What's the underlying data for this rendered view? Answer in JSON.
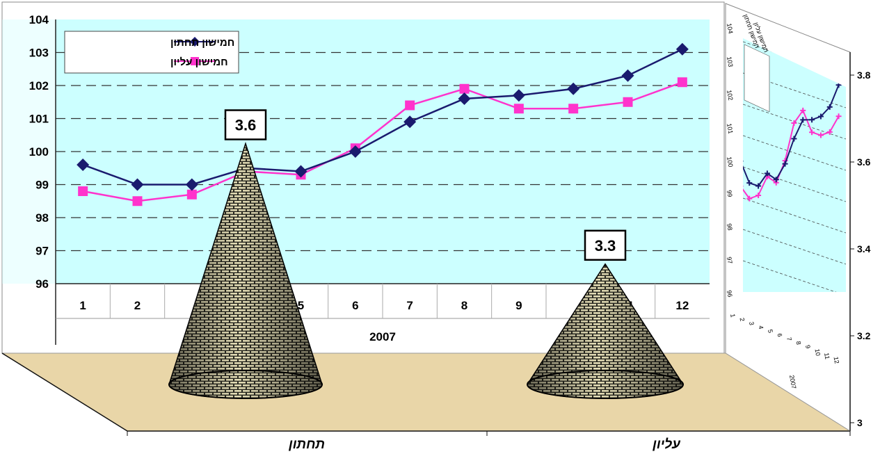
{
  "colors": {
    "plot_background": "#ccffff",
    "floor": "#e9d6a8",
    "series_lower": "#1a1a6e",
    "series_upper": "#ff33cc",
    "cone_mortar": "#f3ecc2",
    "cone_brick": "#2a2a22"
  },
  "chart_data": [
    {
      "type": "line",
      "role": "backdrop chart (front wall)",
      "x": [
        1,
        2,
        3,
        4,
        5,
        6,
        7,
        8,
        9,
        10,
        11,
        12
      ],
      "x_labels": [
        "1",
        "2",
        "",
        "",
        "5",
        "6",
        "7",
        "8",
        "9",
        "",
        "11",
        "12"
      ],
      "group_label": "2007",
      "ylim": [
        96,
        104
      ],
      "yticks": [
        "96",
        "97",
        "98",
        "99",
        "100",
        "101",
        "102",
        "103",
        "104"
      ],
      "grid": "dashed horizontal",
      "legend_position": "top-left",
      "series": [
        {
          "name": "חמישון תחתון",
          "marker": "diamond",
          "values": [
            99.6,
            99.0,
            99.0,
            99.5,
            99.4,
            100.0,
            100.9,
            101.6,
            101.7,
            101.9,
            102.3,
            103.1
          ]
        },
        {
          "name": "חמישון עליון",
          "marker": "square",
          "values": [
            98.8,
            98.5,
            98.7,
            99.4,
            99.3,
            100.1,
            101.4,
            101.9,
            101.3,
            101.3,
            101.5,
            102.1
          ]
        }
      ]
    },
    {
      "type": "line",
      "role": "small chart on right wall (repeat of backdrop, smaller)",
      "x_labels": [
        "1",
        "2",
        "3",
        "4",
        "5",
        "6",
        "7",
        "8",
        "9",
        "10",
        "11",
        "12"
      ],
      "group_label": "2007",
      "yticks": [
        "96",
        "97",
        "98",
        "99",
        "100",
        "101",
        "102",
        "103",
        "104"
      ],
      "series": [
        {
          "name": "חמישון תחתון",
          "values": [
            99.6,
            99.0,
            99.0,
            99.5,
            99.4,
            100.0,
            100.9,
            101.6,
            101.7,
            101.9,
            102.3,
            103.1
          ]
        },
        {
          "name": "חמישון עליון",
          "values": [
            98.8,
            98.5,
            98.7,
            99.4,
            99.3,
            100.1,
            101.4,
            101.9,
            101.3,
            101.3,
            101.5,
            102.1
          ]
        }
      ]
    },
    {
      "type": "bar",
      "style": "3d cone",
      "categories": [
        "תחתון",
        "עליון"
      ],
      "values": [
        3.6,
        3.3
      ],
      "data_labels": [
        "3.6",
        "3.3"
      ],
      "ylim": [
        3,
        3.8
      ],
      "yticks": [
        "3",
        "3.2",
        "3.4",
        "3.6",
        "3.8"
      ],
      "y_axis_side": "right"
    }
  ]
}
